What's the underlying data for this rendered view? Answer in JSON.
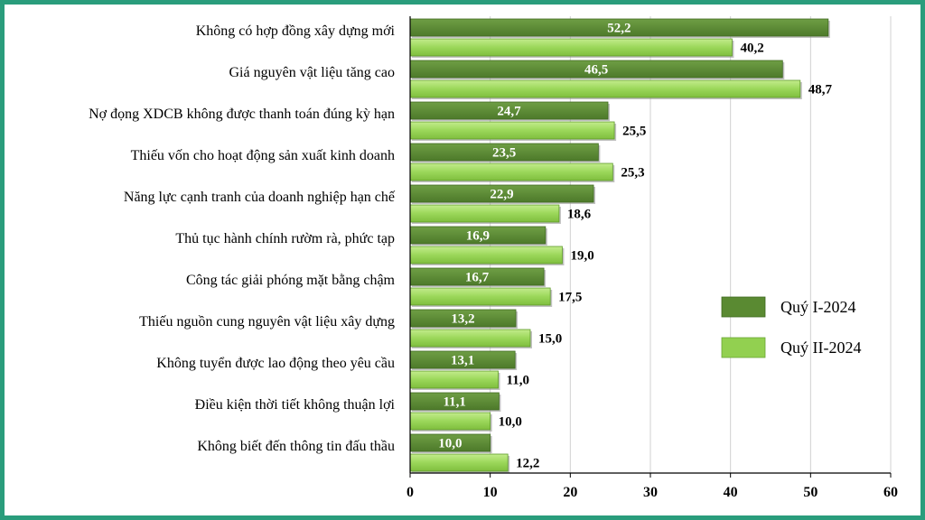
{
  "chart_data": {
    "type": "bar",
    "orientation": "horizontal",
    "categories": [
      "Không có hợp đồng xây dựng mới",
      "Giá nguyên vật liệu tăng cao",
      "Nợ đọng XDCB không được thanh toán đúng kỳ hạn",
      "Thiếu vốn cho hoạt động sản xuất kinh doanh",
      "Năng lực cạnh tranh của doanh nghiệp hạn chế",
      "Thủ tục hành chính rườm rà, phức tạp",
      "Công tác giải phóng mặt bằng chậm",
      "Thiếu nguồn cung nguyên vật liệu xây dựng",
      "Không tuyển được lao động theo yêu cầu",
      "Điều kiện thời tiết không thuận lợi",
      "Không biết đến thông tin đấu thầu"
    ],
    "series": [
      {
        "name": "Quý I-2024",
        "color": "#5a8a32",
        "values": [
          52.2,
          46.5,
          24.7,
          23.5,
          22.9,
          16.9,
          16.7,
          13.2,
          13.1,
          11.1,
          10.0
        ],
        "labels": [
          "52,2",
          "46,5",
          "24,7",
          "23,5",
          "22,9",
          "16,9",
          "16,7",
          "13,2",
          "13,1",
          "11,1",
          "10,0"
        ]
      },
      {
        "name": "Quý II-2024",
        "color": "#92d050",
        "values": [
          40.2,
          48.7,
          25.5,
          25.3,
          18.6,
          19.0,
          17.5,
          15.0,
          11.0,
          10.0,
          12.2
        ],
        "labels": [
          "40,2",
          "48,7",
          "25,5",
          "25,3",
          "18,6",
          "19,0",
          "17,5",
          "15,0",
          "11,0",
          "10,0",
          "12,2"
        ]
      }
    ],
    "xlim": [
      0,
      60
    ],
    "x_ticks": [
      0,
      10,
      20,
      30,
      40,
      50,
      60
    ],
    "x_tick_labels": [
      "0",
      "10",
      "20",
      "30",
      "40",
      "50",
      "60"
    ],
    "grid": true,
    "legend_position": "right"
  }
}
